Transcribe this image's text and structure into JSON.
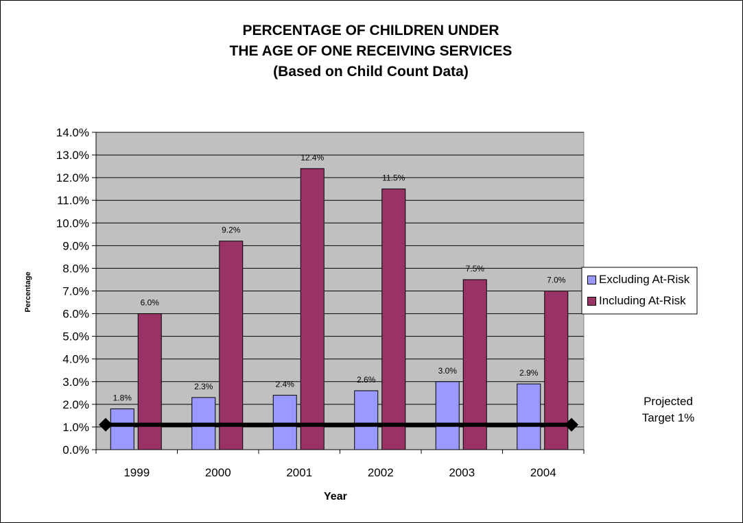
{
  "chart_data": {
    "type": "bar",
    "title_lines": [
      "PERCENTAGE OF CHILDREN UNDER",
      "THE AGE OF ONE RECEIVING SERVICES",
      "(Based on Child Count Data)"
    ],
    "xlabel": "Year",
    "ylabel": "Percentage",
    "categories": [
      "1999",
      "2000",
      "2001",
      "2002",
      "2003",
      "2004"
    ],
    "series": [
      {
        "name": "Excluding At-Risk",
        "color": "#9999ff",
        "values": [
          1.8,
          2.3,
          2.4,
          2.6,
          3.0,
          2.9
        ],
        "labels": [
          "1.8%",
          "2.3%",
          "2.4%",
          "2.6%",
          "3.0%",
          "2.9%"
        ]
      },
      {
        "name": "Including At-Risk",
        "color": "#993366",
        "values": [
          6.0,
          9.2,
          12.4,
          11.5,
          7.5,
          7.0
        ],
        "labels": [
          "6.0%",
          "9.2%",
          "12.4%",
          "11.5%",
          "7.5%",
          "7.0%"
        ]
      }
    ],
    "target": {
      "value": 1.1,
      "label_lines": [
        "Projected",
        "Target 1%"
      ],
      "color": "#000000"
    },
    "ylim": [
      0,
      14
    ],
    "ytick_step": 1,
    "ytick_labels": [
      "0.0%",
      "1.0%",
      "2.0%",
      "3.0%",
      "4.0%",
      "5.0%",
      "6.0%",
      "7.0%",
      "8.0%",
      "9.0%",
      "10.0%",
      "11.0%",
      "12.0%",
      "13.0%",
      "14.0%"
    ],
    "grid": true,
    "plot_background": "#c0c0c0",
    "legend_position": "right"
  }
}
